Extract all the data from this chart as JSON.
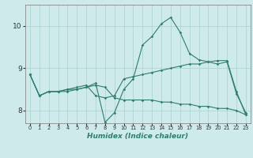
{
  "xlabel": "Humidex (Indice chaleur)",
  "ylabel": "",
  "background_color": "#ceeaea",
  "line_color": "#2e7d6e",
  "grid_color": "#aacfcf",
  "ylim": [
    7.7,
    10.5
  ],
  "xlim": [
    -0.5,
    23.5
  ],
  "yticks": [
    8,
    9,
    10
  ],
  "xticks": [
    0,
    1,
    2,
    3,
    4,
    5,
    6,
    7,
    8,
    9,
    10,
    11,
    12,
    13,
    14,
    15,
    16,
    17,
    18,
    19,
    20,
    21,
    22,
    23
  ],
  "line1_x": [
    0,
    1,
    2,
    3,
    4,
    5,
    6,
    7,
    8,
    9,
    10,
    11,
    12,
    13,
    14,
    15,
    16,
    17,
    18,
    19,
    20,
    21,
    22,
    23
  ],
  "line1_y": [
    8.85,
    8.35,
    8.45,
    8.45,
    8.5,
    8.5,
    8.55,
    8.65,
    7.72,
    7.95,
    8.5,
    8.75,
    9.55,
    9.75,
    10.05,
    10.2,
    9.85,
    9.35,
    9.2,
    9.15,
    9.1,
    9.15,
    8.4,
    7.95
  ],
  "line2_x": [
    0,
    1,
    2,
    3,
    4,
    5,
    6,
    7,
    8,
    9,
    10,
    11,
    12,
    13,
    14,
    15,
    16,
    17,
    18,
    19,
    20,
    21,
    22,
    23
  ],
  "line2_y": [
    8.85,
    8.35,
    8.45,
    8.45,
    8.5,
    8.55,
    8.6,
    8.35,
    8.3,
    8.35,
    8.75,
    8.8,
    8.85,
    8.9,
    8.95,
    9.0,
    9.05,
    9.1,
    9.1,
    9.15,
    9.18,
    9.18,
    8.45,
    7.9
  ],
  "line3_x": [
    0,
    1,
    2,
    3,
    4,
    5,
    6,
    7,
    8,
    9,
    10,
    11,
    12,
    13,
    14,
    15,
    16,
    17,
    18,
    19,
    20,
    21,
    22,
    23
  ],
  "line3_y": [
    8.85,
    8.35,
    8.45,
    8.45,
    8.45,
    8.5,
    8.55,
    8.6,
    8.55,
    8.3,
    8.25,
    8.25,
    8.25,
    8.25,
    8.2,
    8.2,
    8.15,
    8.15,
    8.1,
    8.1,
    8.05,
    8.05,
    8.0,
    7.9
  ]
}
